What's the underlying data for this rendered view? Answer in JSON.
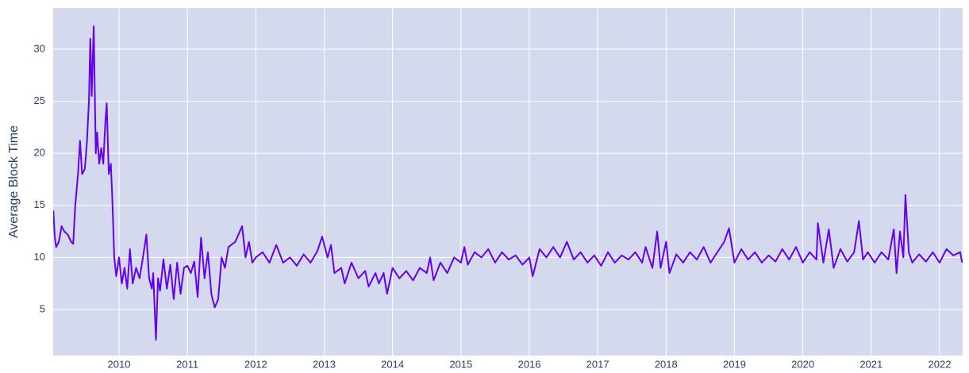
{
  "chart_data": {
    "type": "line",
    "y_label": "Average Block Time",
    "x": [
      2009.04,
      2009.06,
      2009.08,
      2009.12,
      2009.16,
      2009.2,
      2009.25,
      2009.3,
      2009.33,
      2009.36,
      2009.4,
      2009.43,
      2009.46,
      2009.5,
      2009.53,
      2009.56,
      2009.58,
      2009.6,
      2009.63,
      2009.66,
      2009.68,
      2009.71,
      2009.74,
      2009.77,
      2009.8,
      2009.82,
      2009.85,
      2009.88,
      2009.9,
      2009.93,
      2009.96,
      2010.0,
      2010.04,
      2010.08,
      2010.12,
      2010.16,
      2010.2,
      2010.25,
      2010.3,
      2010.35,
      2010.4,
      2010.44,
      2010.48,
      2010.5,
      2010.54,
      2010.57,
      2010.6,
      2010.65,
      2010.7,
      2010.75,
      2010.8,
      2010.85,
      2010.9,
      2010.95,
      2011.0,
      2011.05,
      2011.1,
      2011.15,
      2011.2,
      2011.25,
      2011.3,
      2011.35,
      2011.4,
      2011.45,
      2011.5,
      2011.55,
      2011.6,
      2011.7,
      2011.8,
      2011.85,
      2011.9,
      2011.95,
      2012.0,
      2012.1,
      2012.2,
      2012.3,
      2012.4,
      2012.5,
      2012.6,
      2012.7,
      2012.8,
      2012.9,
      2012.97,
      2013.05,
      2013.1,
      2013.15,
      2013.25,
      2013.3,
      2013.4,
      2013.5,
      2013.6,
      2013.65,
      2013.75,
      2013.8,
      2013.87,
      2013.92,
      2014.0,
      2014.1,
      2014.2,
      2014.3,
      2014.4,
      2014.5,
      2014.55,
      2014.6,
      2014.7,
      2014.8,
      2014.9,
      2015.0,
      2015.05,
      2015.1,
      2015.2,
      2015.3,
      2015.4,
      2015.5,
      2015.6,
      2015.7,
      2015.8,
      2015.9,
      2016.0,
      2016.05,
      2016.15,
      2016.25,
      2016.35,
      2016.45,
      2016.55,
      2016.65,
      2016.75,
      2016.85,
      2016.95,
      2017.05,
      2017.15,
      2017.25,
      2017.35,
      2017.45,
      2017.55,
      2017.65,
      2017.7,
      2017.8,
      2017.87,
      2017.92,
      2018.0,
      2018.05,
      2018.15,
      2018.25,
      2018.35,
      2018.45,
      2018.55,
      2018.65,
      2018.75,
      2018.85,
      2018.92,
      2019.0,
      2019.1,
      2019.2,
      2019.3,
      2019.4,
      2019.5,
      2019.6,
      2019.7,
      2019.8,
      2019.9,
      2020.0,
      2020.1,
      2020.2,
      2020.22,
      2020.3,
      2020.38,
      2020.45,
      2020.55,
      2020.65,
      2020.75,
      2020.82,
      2020.88,
      2020.95,
      2021.05,
      2021.15,
      2021.25,
      2021.33,
      2021.37,
      2021.42,
      2021.47,
      2021.5,
      2021.55,
      2021.6,
      2021.7,
      2021.8,
      2021.9,
      2022.0,
      2022.1,
      2022.2,
      2022.3,
      2022.33
    ],
    "series": [
      {
        "color": "#6600f0",
        "values": [
          14.5,
          12,
          11,
          11.5,
          13,
          12.5,
          12.2,
          11.5,
          11.3,
          15,
          18,
          21.2,
          18,
          18.5,
          21,
          25,
          31,
          25.5,
          32.2,
          20,
          22,
          19,
          20.5,
          19,
          23,
          24.8,
          18,
          19,
          16,
          10,
          8.2,
          10,
          7.5,
          9,
          7,
          10.8,
          7.5,
          9,
          8,
          10,
          12.2,
          8,
          7,
          8.5,
          2.1,
          8,
          6.8,
          9.8,
          7,
          9.3,
          6,
          9.5,
          6.5,
          9,
          9.2,
          8.5,
          9.6,
          6.2,
          11.9,
          8,
          10.5,
          6.5,
          5.2,
          6,
          10,
          9,
          11,
          11.5,
          13,
          10,
          11.5,
          9.5,
          10,
          10.5,
          9.5,
          11.2,
          9.5,
          10,
          9.2,
          10.3,
          9.5,
          10.6,
          12,
          10,
          11.2,
          8.5,
          9,
          7.5,
          9.5,
          8,
          8.7,
          7.2,
          8.5,
          7.5,
          8.5,
          6.5,
          9,
          8,
          8.7,
          7.8,
          9,
          8.5,
          10,
          7.8,
          9.5,
          8.5,
          10,
          9.5,
          11,
          9.3,
          10.5,
          10,
          10.8,
          9.5,
          10.5,
          9.8,
          10.2,
          9.3,
          10,
          8.2,
          10.8,
          10,
          11,
          10,
          11.5,
          9.8,
          10.5,
          9.5,
          10.2,
          9.2,
          10.5,
          9.5,
          10.2,
          9.8,
          10.5,
          9.5,
          11,
          9,
          12.5,
          9,
          11.5,
          8.5,
          10.3,
          9.5,
          10.5,
          9.8,
          11,
          9.5,
          10.5,
          11.5,
          12.8,
          9.5,
          10.8,
          9.8,
          10.5,
          9.5,
          10.2,
          9.6,
          10.8,
          9.8,
          11,
          9.5,
          10.5,
          9.8,
          13.3,
          9.5,
          12.7,
          9,
          10.8,
          9.6,
          10.5,
          13.5,
          9.8,
          10.5,
          9.5,
          10.5,
          9.8,
          12.7,
          8.5,
          12.5,
          10,
          16,
          10.5,
          9.5,
          10.3,
          9.6,
          10.5,
          9.5,
          10.8,
          10.2,
          10.5,
          9.5
        ]
      }
    ],
    "xlim": [
      2009.037,
      2022.337
    ],
    "ylim": [
      0.58,
      33.96
    ],
    "xticks": [
      2010,
      2011,
      2012,
      2013,
      2014,
      2015,
      2016,
      2017,
      2018,
      2019,
      2020,
      2021,
      2022
    ],
    "yticks": [
      5,
      10,
      15,
      20,
      25,
      30
    ],
    "grid": true,
    "background": "#d4d9ee"
  }
}
